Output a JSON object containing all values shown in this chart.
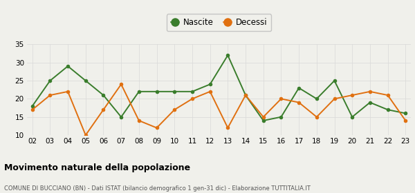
{
  "x_labels": [
    "02",
    "03",
    "04",
    "05",
    "06",
    "07",
    "08",
    "09",
    "10",
    "11",
    "12",
    "13",
    "14",
    "15",
    "16",
    "17",
    "18",
    "19",
    "20",
    "21",
    "22",
    "23"
  ],
  "nascite": [
    18,
    25,
    29,
    25,
    21,
    15,
    22,
    22,
    22,
    22,
    24,
    32,
    21,
    14,
    15,
    23,
    20,
    25,
    15,
    19,
    17,
    16
  ],
  "decessi": [
    17,
    21,
    22,
    10,
    17,
    24,
    14,
    12,
    17,
    20,
    22,
    12,
    21,
    15,
    20,
    19,
    15,
    20,
    21,
    22,
    21,
    14
  ],
  "nascite_color": "#3a7d2c",
  "decessi_color": "#e07010",
  "ylim": [
    10,
    35
  ],
  "yticks": [
    10,
    15,
    20,
    25,
    30,
    35
  ],
  "title": "Movimento naturale della popolazione",
  "subtitle": "COMUNE DI BUCCIANO (BN) - Dati ISTAT (bilancio demografico 1 gen-31 dic) - Elaborazione TUTTITALIA.IT",
  "legend_nascite": "Nascite",
  "legend_decessi": "Decessi",
  "bg_color": "#f0f0eb",
  "grid_color": "#d8d8d8",
  "marker_size": 4,
  "line_width": 1.4,
  "title_fontsize": 9,
  "subtitle_fontsize": 6.0,
  "tick_fontsize": 7.5,
  "legend_fontsize": 8.5
}
